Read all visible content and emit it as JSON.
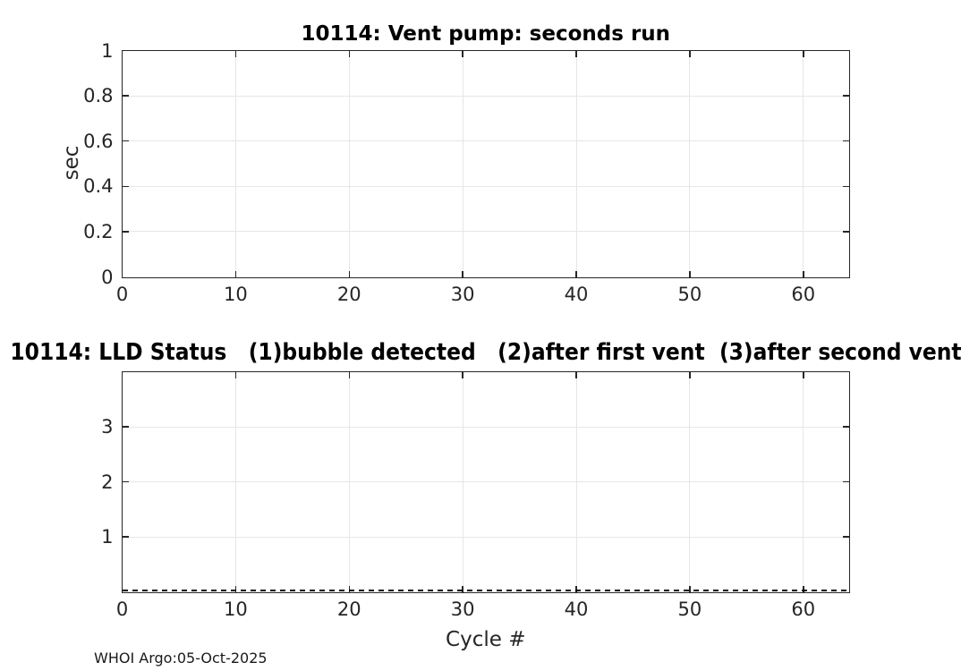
{
  "figure": {
    "background": "#ffffff",
    "footer": "WHOI Argo:05-Oct-2025",
    "colors": {
      "title_text": "#000000",
      "axis_text": "#262626",
      "axis_line": "#262626",
      "grid_line": "#e6e6e6",
      "series_line": "#000000"
    }
  },
  "chart_data": [
    {
      "type": "line",
      "title": "10114: Vent pump: seconds run",
      "xlabel": "",
      "ylabel": "sec",
      "xlim": [
        0,
        64
      ],
      "ylim": [
        0,
        1
      ],
      "xticks": [
        0,
        10,
        20,
        30,
        40,
        50,
        60
      ],
      "yticks": [
        0,
        0.2,
        0.4,
        0.6,
        0.8,
        1
      ],
      "grid": true,
      "box": true,
      "series": []
    },
    {
      "type": "line",
      "title": "10114: LLD Status   (1)bubble detected   (2)after first vent  (3)after second vent",
      "xlabel": "Cycle #",
      "ylabel": "",
      "xlim": [
        0,
        64
      ],
      "ylim": [
        0,
        4
      ],
      "xticks": [
        0,
        10,
        20,
        30,
        40,
        50,
        60
      ],
      "yticks": [
        1,
        2,
        3
      ],
      "grid": true,
      "box": true,
      "series": [
        {
          "name": "LLD status",
          "linestyle": "dashed",
          "color": "#000000",
          "constant_y": 0,
          "x_range": [
            0,
            64
          ]
        }
      ]
    }
  ]
}
